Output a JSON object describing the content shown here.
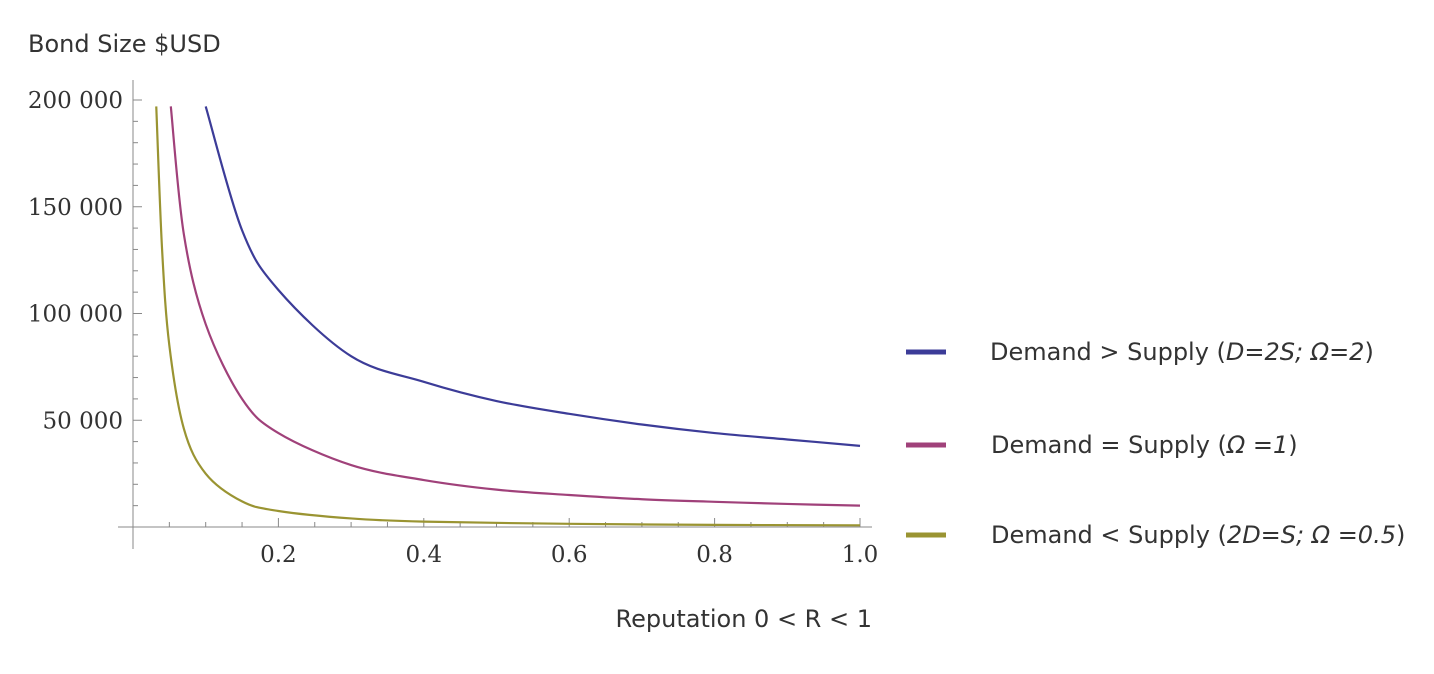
{
  "chart_data": {
    "type": "line",
    "title": "",
    "xlabel": "Reputation 0 < R < 1",
    "ylabel": "Bond Size $USD",
    "xlim": [
      0.0,
      1.0
    ],
    "ylim": [
      0,
      200000
    ],
    "x_ticks": [
      0.2,
      0.4,
      0.6,
      0.8,
      1.0
    ],
    "x_tick_labels": [
      "0.2",
      "0.4",
      "0.6",
      "0.8",
      "1.0"
    ],
    "y_ticks": [
      50000,
      100000,
      150000,
      200000
    ],
    "y_tick_labels": [
      "50 000",
      "100 000",
      "150 000",
      "200 000"
    ],
    "grid": false,
    "legend_position": "right",
    "series": [
      {
        "name": "Demand > Supply (D=2S; Ω=2)",
        "legend": {
          "plain": "Demand > Supply (",
          "italic": "D=2S; Ω=2",
          "close": ")"
        },
        "color": "#3c3c98",
        "points": [
          [
            0.1,
            197000
          ],
          [
            0.15,
            139000
          ],
          [
            0.2,
            111000
          ],
          [
            0.3,
            80000
          ],
          [
            0.4,
            68000
          ],
          [
            0.5,
            59000
          ],
          [
            0.6,
            53000
          ],
          [
            0.7,
            48000
          ],
          [
            0.8,
            44000
          ],
          [
            0.9,
            41000
          ],
          [
            1.0,
            38000
          ]
        ]
      },
      {
        "name": "Demand = Supply (Ω =1)",
        "legend": {
          "plain": "Demand = Supply (",
          "italic": "Ω =1",
          "close": ")"
        },
        "color": "#a0417a",
        "points": [
          [
            0.052,
            197000
          ],
          [
            0.07,
            137000
          ],
          [
            0.1,
            95000
          ],
          [
            0.15,
            60000
          ],
          [
            0.2,
            44000
          ],
          [
            0.3,
            29000
          ],
          [
            0.4,
            22000
          ],
          [
            0.5,
            17500
          ],
          [
            0.6,
            15000
          ],
          [
            0.7,
            13000
          ],
          [
            0.8,
            11800
          ],
          [
            0.9,
            10800
          ],
          [
            1.0,
            10000
          ]
        ]
      },
      {
        "name": "Demand < Supply (2D=S; Ω =0.5)",
        "legend": {
          "plain": "Demand < Supply (",
          "italic": "2D=S; Ω =0.5",
          "close": ")"
        },
        "color": "#9a9432",
        "points": [
          [
            0.032,
            197000
          ],
          [
            0.04,
            130000
          ],
          [
            0.05,
            85000
          ],
          [
            0.07,
            46000
          ],
          [
            0.1,
            25000
          ],
          [
            0.15,
            12000
          ],
          [
            0.2,
            7500
          ],
          [
            0.3,
            4000
          ],
          [
            0.4,
            2500
          ],
          [
            0.6,
            1500
          ],
          [
            0.8,
            1000
          ],
          [
            1.0,
            800
          ]
        ]
      }
    ]
  }
}
